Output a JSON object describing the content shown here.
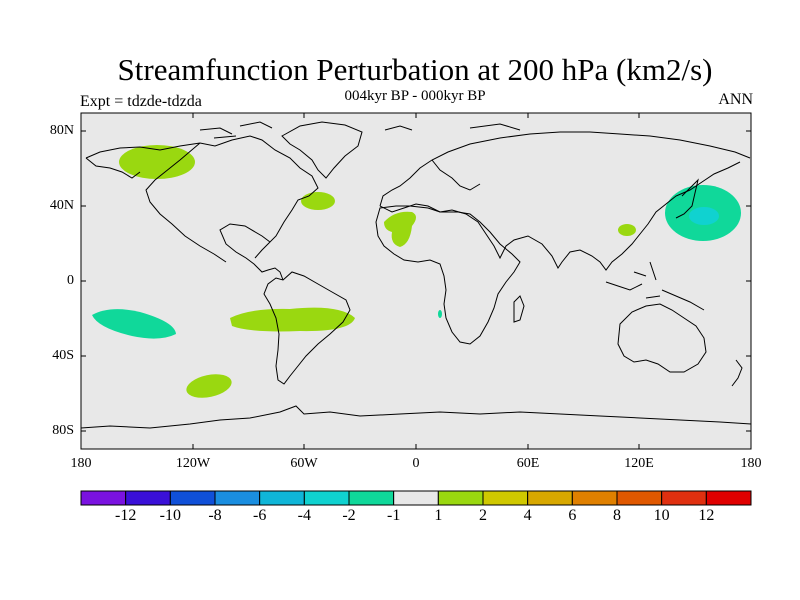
{
  "title": "Streamfunction Perturbation at 200 hPa (km2/s)",
  "subtitle": "004kyr BP - 000kyr BP",
  "experiment_label": "Expt = tdzde-tdzda",
  "season_label": "ANN",
  "lat_ticks": [
    "80N",
    "40N",
    "0",
    "40S",
    "80S"
  ],
  "lon_ticks": [
    "180",
    "120W",
    "60W",
    "0",
    "60E",
    "120E",
    "180"
  ],
  "colorbar": {
    "labels": [
      "-12",
      "-10",
      "-8",
      "-6",
      "-4",
      "-2",
      "-1",
      "1",
      "2",
      "4",
      "6",
      "8",
      "10",
      "12"
    ],
    "colors": [
      "#7a12e0",
      "#3a10d8",
      "#1050d8",
      "#1a8ee0",
      "#10b6d8",
      "#10d2d0",
      "#10d89a",
      "#e8e8e8",
      "#9ad810",
      "#d0c800",
      "#d8a800",
      "#e08000",
      "#e05800",
      "#e03010",
      "#e00000"
    ]
  },
  "colors": {
    "ocean": "#e8e8e8",
    "coast": "#000000",
    "level_pos1": "#9ad810",
    "level_neg1": "#10d89a",
    "level_neg2": "#10d2d0"
  }
}
